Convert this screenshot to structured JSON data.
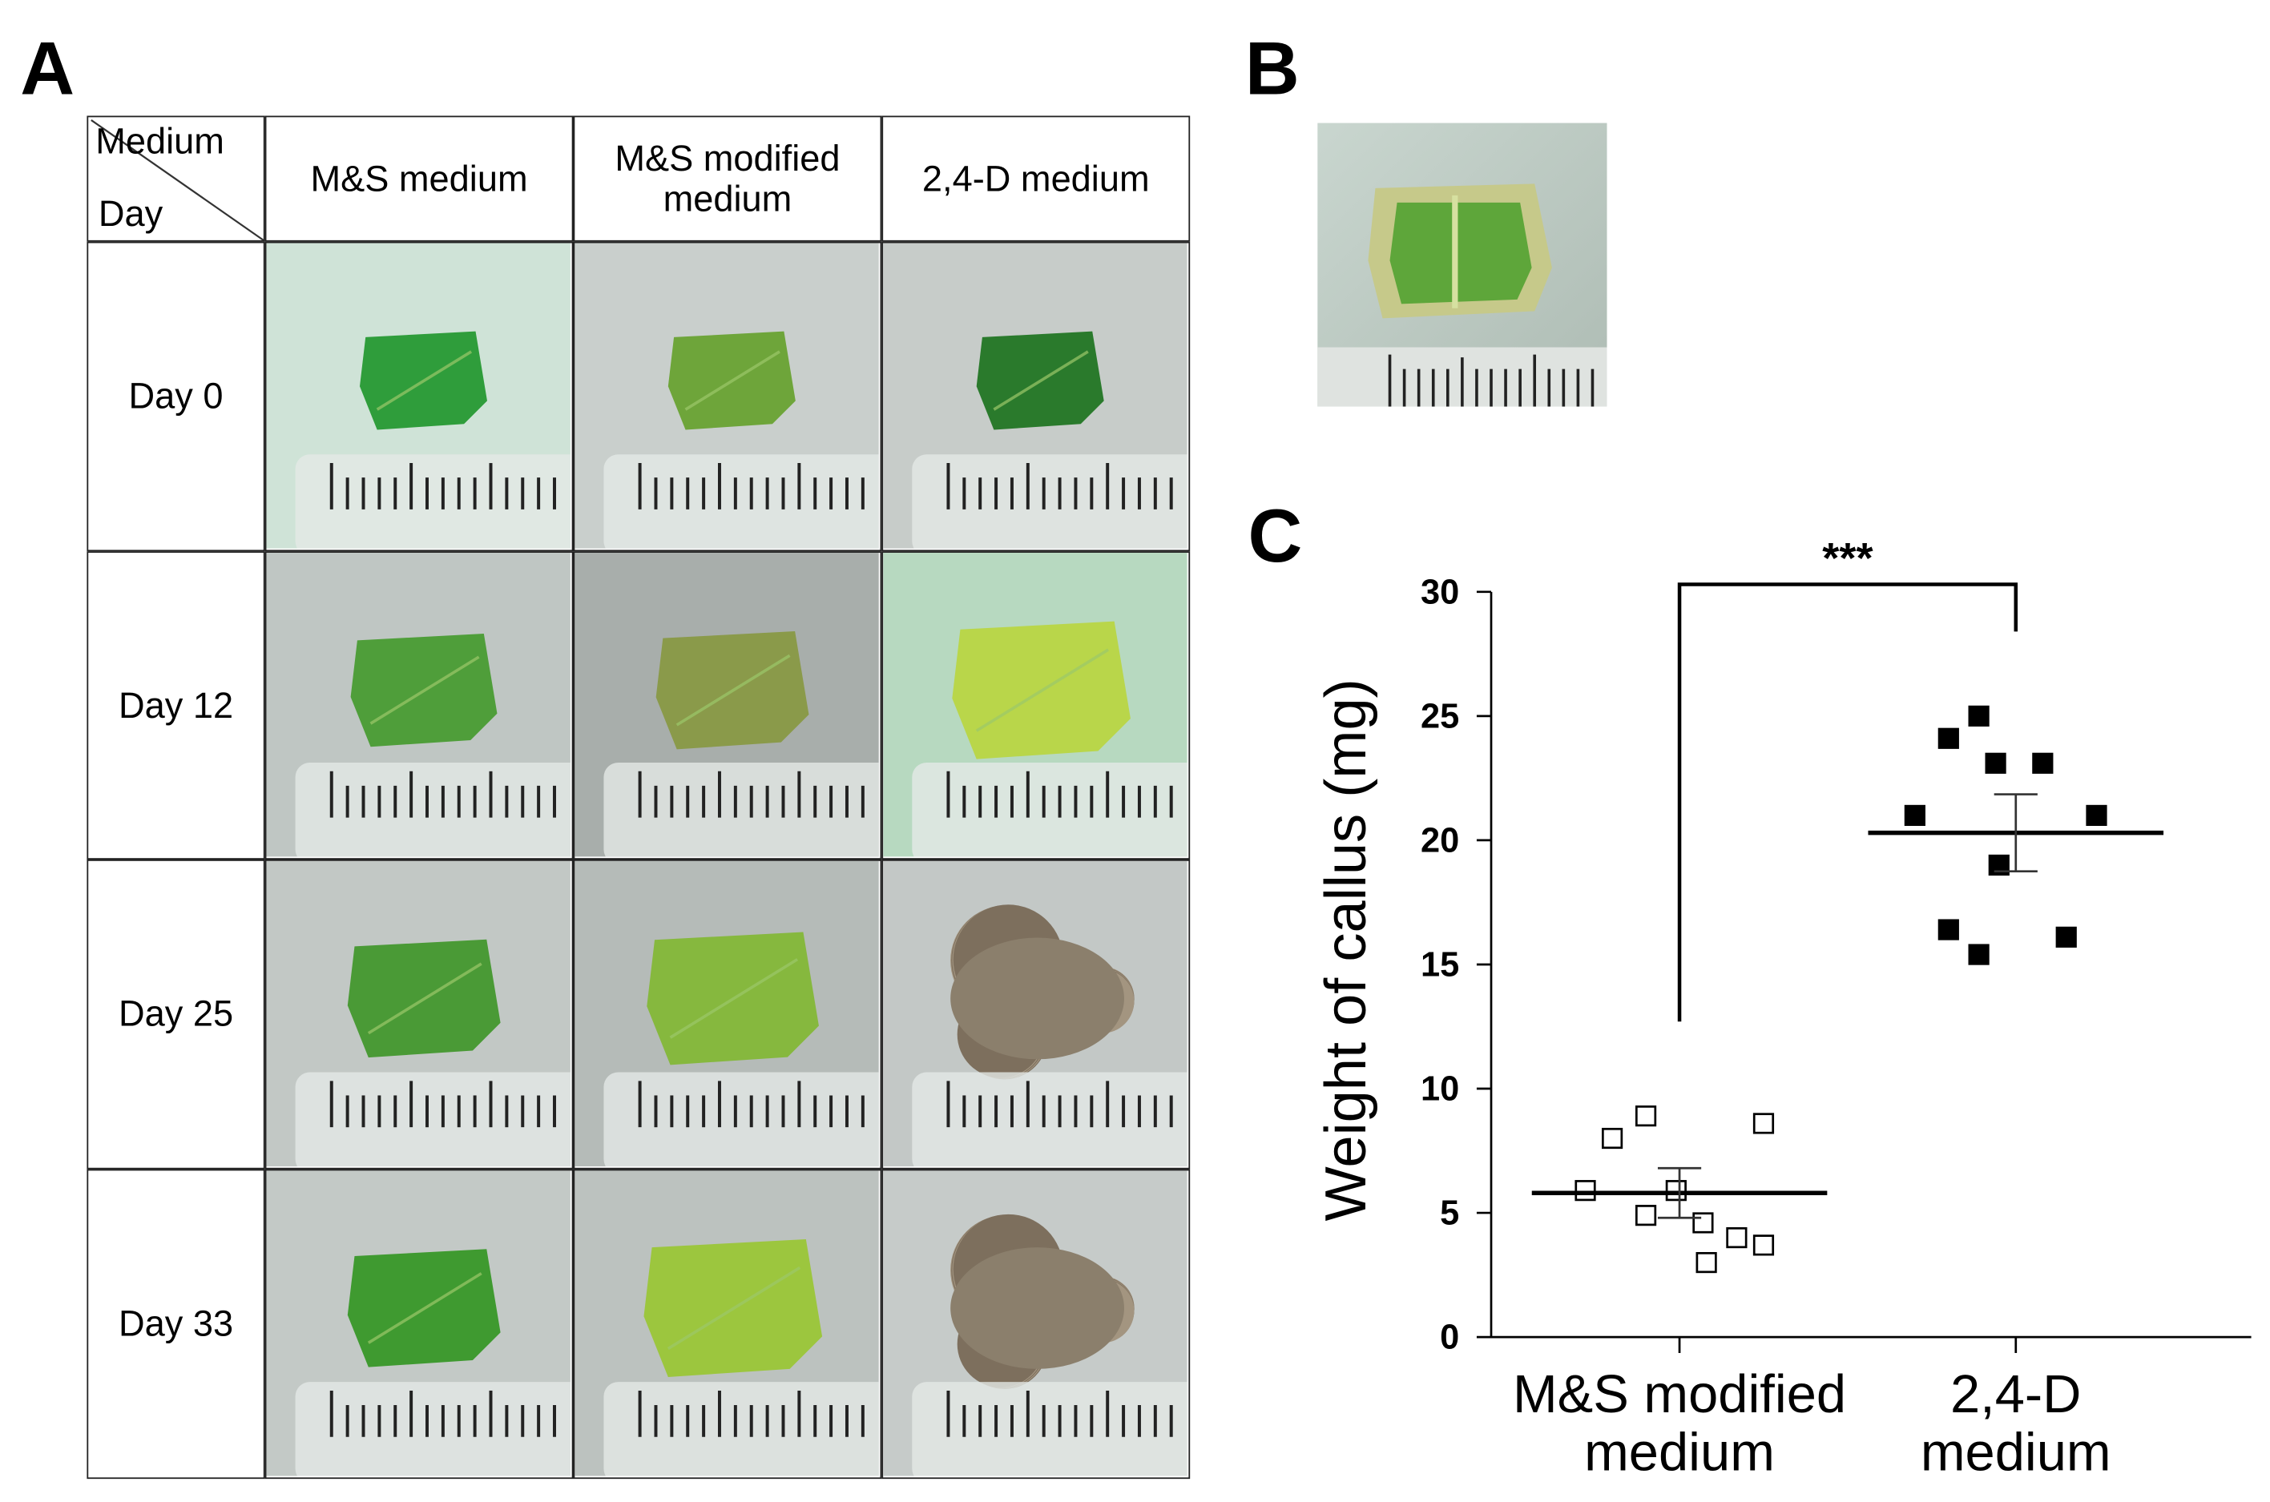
{
  "panel_labels": [
    "A",
    "B",
    "C"
  ],
  "table": {
    "corner_top": "Medium",
    "corner_bottom": "Day",
    "columns": [
      "M&S medium",
      "M&S modified\nmedium",
      "2,4-D medium"
    ],
    "rows": [
      "Day 0",
      "Day 12",
      "Day 25",
      "Day 33"
    ]
  },
  "chart_data": {
    "type": "scatter",
    "ylabel": "Weight of callus (mg)",
    "ylim": [
      0,
      30
    ],
    "yticks": [
      0,
      5,
      10,
      15,
      20,
      25,
      30
    ],
    "xlim": [
      0.44,
      2.7
    ],
    "xticks": [
      {
        "value": 1,
        "label": "M&S modified\nmedium"
      },
      {
        "value": 2,
        "label": "2,4-D\nmedium"
      }
    ],
    "series": [
      {
        "marker": "open",
        "color": "#000000",
        "x": [
          0.72,
          0.8,
          0.9,
          0.9,
          0.99,
          1.07,
          1.08,
          1.17,
          1.25,
          1.25
        ],
        "values": [
          5.9,
          8.0,
          8.9,
          4.9,
          5.9,
          4.6,
          3.0,
          4.0,
          3.7,
          8.6
        ],
        "mean": 5.8,
        "sem": 1.0
      },
      {
        "marker": "filled",
        "color": "#000000",
        "x": [
          1.7,
          1.8,
          1.89,
          1.94,
          2.08,
          2.24,
          1.95,
          1.8,
          1.89,
          2.15
        ],
        "values": [
          21.0,
          24.1,
          25.0,
          23.1,
          23.1,
          21.0,
          19.0,
          16.4,
          15.4,
          16.1
        ],
        "mean": 20.3,
        "sem": 1.55
      }
    ],
    "significance": {
      "label": "***",
      "y": 30.3,
      "ends": [
        12.7,
        28.4
      ]
    }
  }
}
